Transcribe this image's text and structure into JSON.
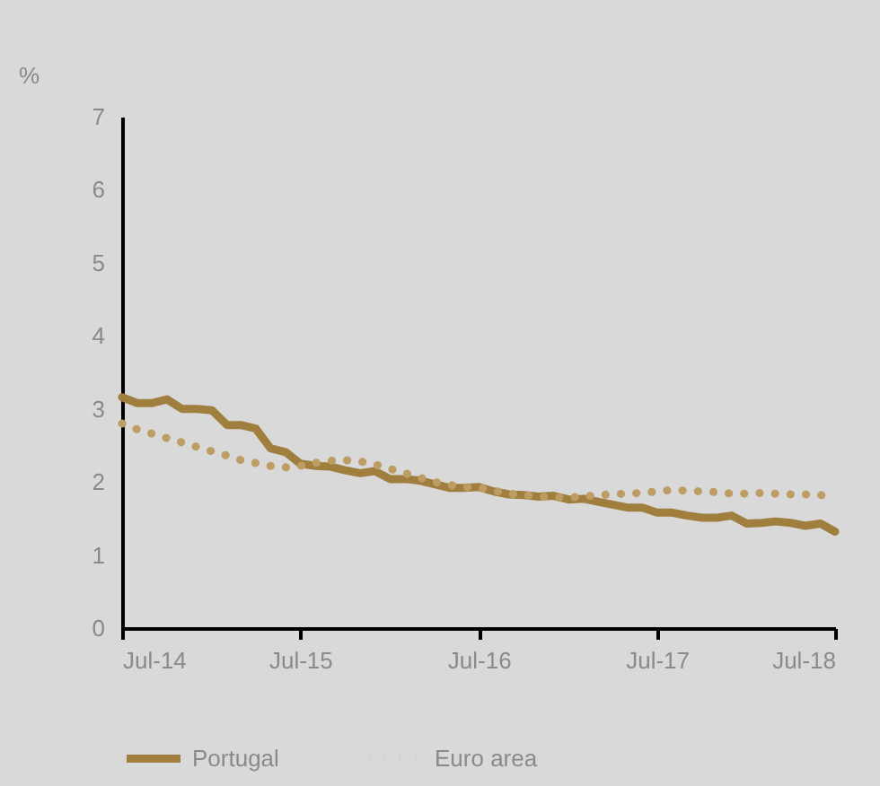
{
  "chart_data": {
    "type": "line",
    "ylabel": "%",
    "legend": "bottom",
    "marker": "none",
    "x": [
      "2014-07",
      "2014-08",
      "2014-09",
      "2014-10",
      "2014-11",
      "2014-12",
      "2015-01",
      "2015-02",
      "2015-03",
      "2015-04",
      "2015-05",
      "2015-06",
      "2015-07",
      "2015-08",
      "2015-09",
      "2015-10",
      "2015-11",
      "2015-12",
      "2016-01",
      "2016-02",
      "2016-03",
      "2016-04",
      "2016-05",
      "2016-06",
      "2016-07",
      "2016-08",
      "2016-09",
      "2016-10",
      "2016-11",
      "2016-12",
      "2017-01",
      "2017-02",
      "2017-03",
      "2017-04",
      "2017-05",
      "2017-06",
      "2017-07",
      "2017-08",
      "2017-09",
      "2017-10",
      "2017-11",
      "2017-12",
      "2018-01",
      "2018-02",
      "2018-03",
      "2018-04",
      "2018-05",
      "2018-06",
      "2018-07"
    ],
    "xlim": [
      "2014-07",
      "2018-07"
    ],
    "xticks": [
      {
        "value": "2014-07",
        "label": "Jul-14"
      },
      {
        "value": "2015-07",
        "label": "Jul-15"
      },
      {
        "value": "2016-07",
        "label": "Jul-16"
      },
      {
        "value": "2017-07",
        "label": "Jul-17"
      },
      {
        "value": "2018-07",
        "label": "Jul-18"
      }
    ],
    "ylim": [
      0,
      7
    ],
    "yticks": [
      0,
      1,
      2,
      3,
      4,
      5,
      6,
      7
    ],
    "series": [
      {
        "name": "Portugal",
        "color": "#a07f3e",
        "line_style": "solid",
        "values": [
          3.16,
          3.08,
          3.08,
          3.13,
          3.0,
          3.0,
          2.98,
          2.78,
          2.78,
          2.73,
          2.46,
          2.41,
          2.25,
          2.22,
          2.21,
          2.16,
          2.12,
          2.15,
          2.04,
          2.04,
          2.02,
          1.97,
          1.92,
          1.92,
          1.93,
          1.87,
          1.83,
          1.82,
          1.8,
          1.81,
          1.76,
          1.77,
          1.73,
          1.69,
          1.65,
          1.65,
          1.58,
          1.58,
          1.54,
          1.51,
          1.51,
          1.54,
          1.43,
          1.44,
          1.46,
          1.44,
          1.4,
          1.43,
          1.32
        ]
      },
      {
        "name": "Euro area",
        "color": "#bd9d63",
        "line_style": "dotted",
        "values": [
          2.8,
          2.72,
          2.66,
          2.6,
          2.54,
          2.48,
          2.42,
          2.36,
          2.3,
          2.26,
          2.22,
          2.2,
          2.22,
          2.26,
          2.29,
          2.3,
          2.28,
          2.24,
          2.18,
          2.12,
          2.06,
          2.0,
          1.96,
          1.93,
          1.92,
          1.88,
          1.84,
          1.82,
          1.8,
          1.79,
          1.79,
          1.8,
          1.82,
          1.83,
          1.84,
          1.85,
          1.87,
          1.89,
          1.88,
          1.87,
          1.86,
          1.84,
          1.84,
          1.85,
          1.84,
          1.83,
          1.83,
          1.82,
          1.81
        ]
      }
    ]
  }
}
